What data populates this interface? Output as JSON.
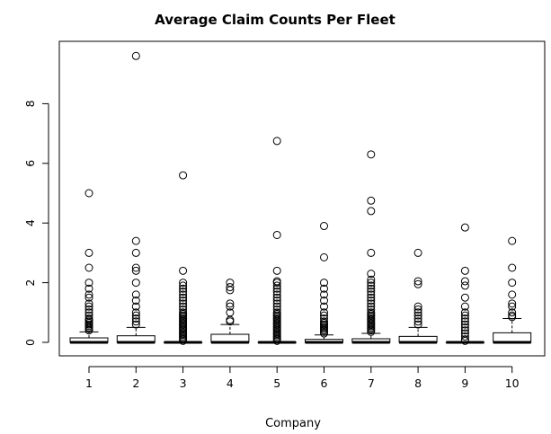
{
  "chart_data": {
    "type": "boxplot",
    "title": "Average Claim Counts Per Fleet",
    "xlabel": "Company",
    "ylabel": "",
    "ylim": [
      0,
      9.9
    ],
    "yticks": [
      0,
      2,
      4,
      6,
      8
    ],
    "categories": [
      "1",
      "2",
      "3",
      "4",
      "5",
      "6",
      "7",
      "8",
      "9",
      "10"
    ],
    "grid": false,
    "boxes": [
      {
        "company": "1",
        "q1": 0,
        "median": 0,
        "q3": 0.15,
        "whisker_high": 0.35,
        "outliers": [
          0.4,
          0.45,
          0.5,
          0.55,
          0.6,
          0.65,
          0.7,
          0.75,
          0.8,
          0.9,
          1.0,
          1.1,
          1.2,
          1.3,
          1.5,
          1.6,
          1.8,
          2.0,
          2.5,
          3.0,
          5.0
        ]
      },
      {
        "company": "2",
        "q1": 0,
        "median": 0,
        "q3": 0.22,
        "whisker_high": 0.5,
        "outliers": [
          0.6,
          0.7,
          0.8,
          0.9,
          1.0,
          1.2,
          1.4,
          1.6,
          2.0,
          2.4,
          2.5,
          3.0,
          3.4,
          9.6
        ]
      },
      {
        "company": "3",
        "q1": 0,
        "median": 0,
        "q3": 0,
        "whisker_high": 0,
        "outliers": [
          0.05,
          0.1,
          0.15,
          0.2,
          0.25,
          0.3,
          0.35,
          0.4,
          0.45,
          0.5,
          0.55,
          0.6,
          0.65,
          0.7,
          0.75,
          0.8,
          0.85,
          0.9,
          0.95,
          1.0,
          1.1,
          1.2,
          1.3,
          1.4,
          1.5,
          1.6,
          1.7,
          1.8,
          1.9,
          2.0,
          2.4,
          5.6
        ]
      },
      {
        "company": "4",
        "q1": 0,
        "median": 0,
        "q3": 0.27,
        "whisker_high": 0.6,
        "outliers": [
          0.7,
          0.75,
          1.0,
          1.2,
          1.3,
          1.75,
          1.85,
          2.0
        ]
      },
      {
        "company": "5",
        "q1": 0,
        "median": 0,
        "q3": 0,
        "whisker_high": 0,
        "outliers": [
          0.05,
          0.1,
          0.15,
          0.2,
          0.25,
          0.3,
          0.35,
          0.4,
          0.45,
          0.5,
          0.55,
          0.6,
          0.65,
          0.7,
          0.75,
          0.8,
          0.85,
          0.9,
          0.95,
          1.0,
          1.1,
          1.2,
          1.3,
          1.4,
          1.5,
          1.6,
          1.7,
          1.8,
          1.9,
          2.0,
          2.05,
          2.4,
          3.6,
          6.75
        ]
      },
      {
        "company": "6",
        "q1": 0,
        "median": 0,
        "q3": 0.1,
        "whisker_high": 0.25,
        "outliers": [
          0.3,
          0.35,
          0.4,
          0.45,
          0.5,
          0.55,
          0.6,
          0.65,
          0.7,
          0.8,
          0.9,
          1.0,
          1.2,
          1.4,
          1.6,
          1.8,
          2.0,
          2.85,
          3.9
        ]
      },
      {
        "company": "7",
        "q1": 0,
        "median": 0,
        "q3": 0.12,
        "whisker_high": 0.3,
        "outliers": [
          0.35,
          0.4,
          0.45,
          0.5,
          0.55,
          0.6,
          0.65,
          0.7,
          0.75,
          0.8,
          0.85,
          0.9,
          0.95,
          1.0,
          1.1,
          1.2,
          1.3,
          1.4,
          1.5,
          1.6,
          1.7,
          1.8,
          1.9,
          2.0,
          2.1,
          2.3,
          3.0,
          4.4,
          4.75,
          6.3
        ]
      },
      {
        "company": "8",
        "q1": 0,
        "median": 0,
        "q3": 0.2,
        "whisker_high": 0.5,
        "outliers": [
          0.6,
          0.7,
          0.8,
          0.9,
          1.0,
          1.1,
          1.2,
          1.95,
          2.05,
          3.0
        ]
      },
      {
        "company": "9",
        "q1": 0,
        "median": 0,
        "q3": 0,
        "whisker_high": 0,
        "outliers": [
          0.05,
          0.1,
          0.2,
          0.3,
          0.4,
          0.5,
          0.6,
          0.7,
          0.8,
          0.9,
          1.0,
          1.2,
          1.5,
          1.9,
          2.05,
          2.4,
          3.85
        ]
      },
      {
        "company": "10",
        "q1": 0,
        "median": 0,
        "q3": 0.32,
        "whisker_high": 0.8,
        "outliers": [
          0.85,
          0.9,
          1.0,
          1.2,
          1.3,
          1.6,
          2.0,
          2.5,
          3.4
        ]
      }
    ]
  }
}
